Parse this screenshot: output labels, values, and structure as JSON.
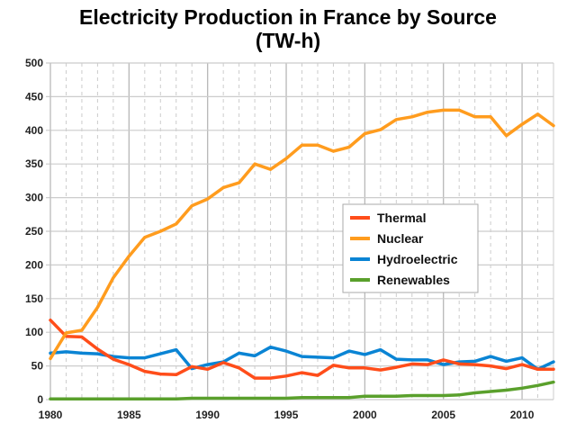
{
  "chart_data": {
    "type": "line",
    "title": "Electricity Production in France by Source",
    "subtitle": "(TW-h)",
    "xlabel": "",
    "ylabel": "",
    "xlim": [
      1980,
      2012
    ],
    "ylim": [
      0,
      500
    ],
    "x_ticks": [
      1980,
      1985,
      1990,
      1995,
      2000,
      2005,
      2010
    ],
    "y_ticks": [
      0,
      50,
      100,
      150,
      200,
      250,
      300,
      350,
      400,
      450,
      500
    ],
    "grid": true,
    "legend_position": "center-right",
    "x": [
      1980,
      1981,
      1982,
      1983,
      1984,
      1985,
      1986,
      1987,
      1988,
      1989,
      1990,
      1991,
      1992,
      1993,
      1994,
      1995,
      1996,
      1997,
      1998,
      1999,
      2000,
      2001,
      2002,
      2003,
      2004,
      2005,
      2006,
      2007,
      2008,
      2009,
      2010,
      2011,
      2012
    ],
    "series": [
      {
        "name": "Thermal",
        "color": "#ff4d1a",
        "values": [
          118,
          94,
          93,
          75,
          60,
          52,
          42,
          38,
          37,
          49,
          45,
          55,
          47,
          32,
          32,
          35,
          40,
          36,
          51,
          47,
          47,
          44,
          48,
          53,
          52,
          59,
          53,
          52,
          50,
          46,
          52,
          45,
          45
        ]
      },
      {
        "name": "Nuclear",
        "color": "#ff9c1e",
        "values": [
          61,
          99,
          103,
          137,
          181,
          213,
          241,
          250,
          261,
          288,
          298,
          315,
          322,
          350,
          342,
          358,
          378,
          378,
          369,
          375,
          395,
          401,
          416,
          420,
          427,
          430,
          430,
          420,
          420,
          392,
          409,
          424,
          407
        ]
      },
      {
        "name": "Hydroelectric",
        "color": "#0a84d4",
        "values": [
          69,
          71,
          69,
          68,
          64,
          62,
          62,
          68,
          74,
          46,
          52,
          56,
          69,
          65,
          78,
          72,
          64,
          63,
          62,
          72,
          67,
          74,
          60,
          59,
          59,
          52,
          56,
          57,
          64,
          57,
          62,
          45,
          56
        ]
      },
      {
        "name": "Renewables",
        "color": "#5aa02c",
        "values": [
          1,
          1,
          1,
          1,
          1,
          1,
          1,
          1,
          1,
          2,
          2,
          2,
          2,
          2,
          2,
          2,
          3,
          3,
          3,
          3,
          5,
          5,
          5,
          6,
          6,
          6,
          7,
          10,
          12,
          14,
          17,
          21,
          26
        ]
      }
    ]
  }
}
